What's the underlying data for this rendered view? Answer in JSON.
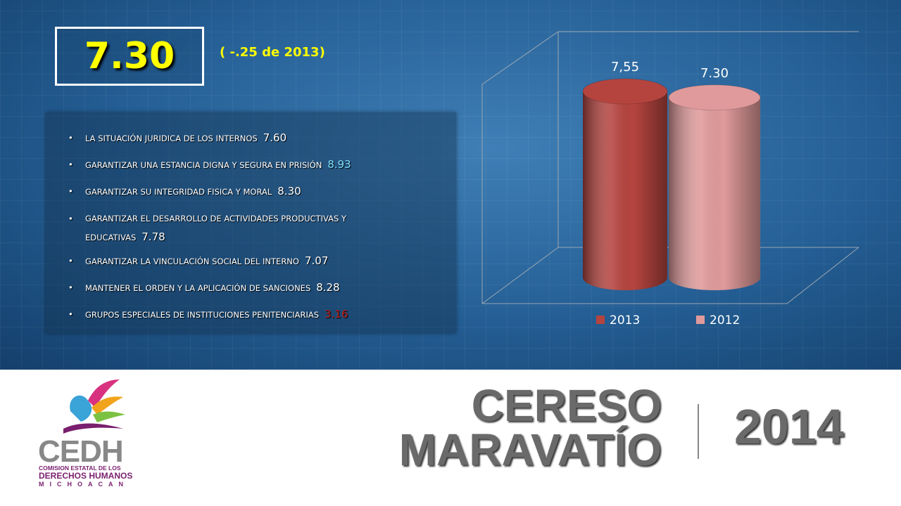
{
  "headline": "7.30",
  "change": "( -.25 de 2013)",
  "bullets": [
    {
      "text": "LA  SITUACIÓN JURIDICA DE LOS INTERNOS",
      "score": "7.60",
      "color": "#ffffff"
    },
    {
      "text": "GARANTIZAR UNA ESTANCIA DIGNA Y SEGURA EN PRISIÓN",
      "score": "8.93",
      "color": "#7fe0ff"
    },
    {
      "text": "GARANTIZAR SU INTEGRIDAD  FISICA Y MORAL",
      "score": "8.30",
      "color": "#ffffff"
    },
    {
      "text": "GARANTIZAR EL DESARROLLO DE  ACTIVIDADES PRODUCTIVAS Y EDUCATIVAS",
      "score": "7.78",
      "color": "#ffffff"
    },
    {
      "text": "GARANTIZAR LA VINCULACIÓN SOCIAL DEL INTERNO",
      "score": "7.07",
      "color": "#ffffff"
    },
    {
      "text": "MANTENER EL ORDEN Y LA APLICACIÓN DE SANCIONES",
      "score": "8.28",
      "color": "#ffffff"
    },
    {
      "text": "GRUPOS ESPECIALES DE INSTITUCIONES PENITENCIARIAS",
      "score": "3.16",
      "color": "#c0201a"
    }
  ],
  "chart_data": {
    "type": "cylinder",
    "categories": [
      null
    ],
    "series": [
      {
        "name": "2013",
        "color": "#b5443f",
        "values": [
          7.55
        ],
        "value_labels": [
          "7,55"
        ]
      },
      {
        "name": "2012",
        "color": "#e09a9b",
        "values": [
          7.3
        ],
        "value_labels": [
          "7.30"
        ]
      }
    ],
    "legend": "bottom"
  },
  "footer": {
    "line1": "CERESO",
    "line2": "MARAVATÍO",
    "year": "2014"
  },
  "logo": {
    "name": "CEDH",
    "line1": "COMISION ESTATAL DE LOS",
    "line2": "DERECHOS HUMANOS",
    "line3": "MICHOACAN"
  }
}
